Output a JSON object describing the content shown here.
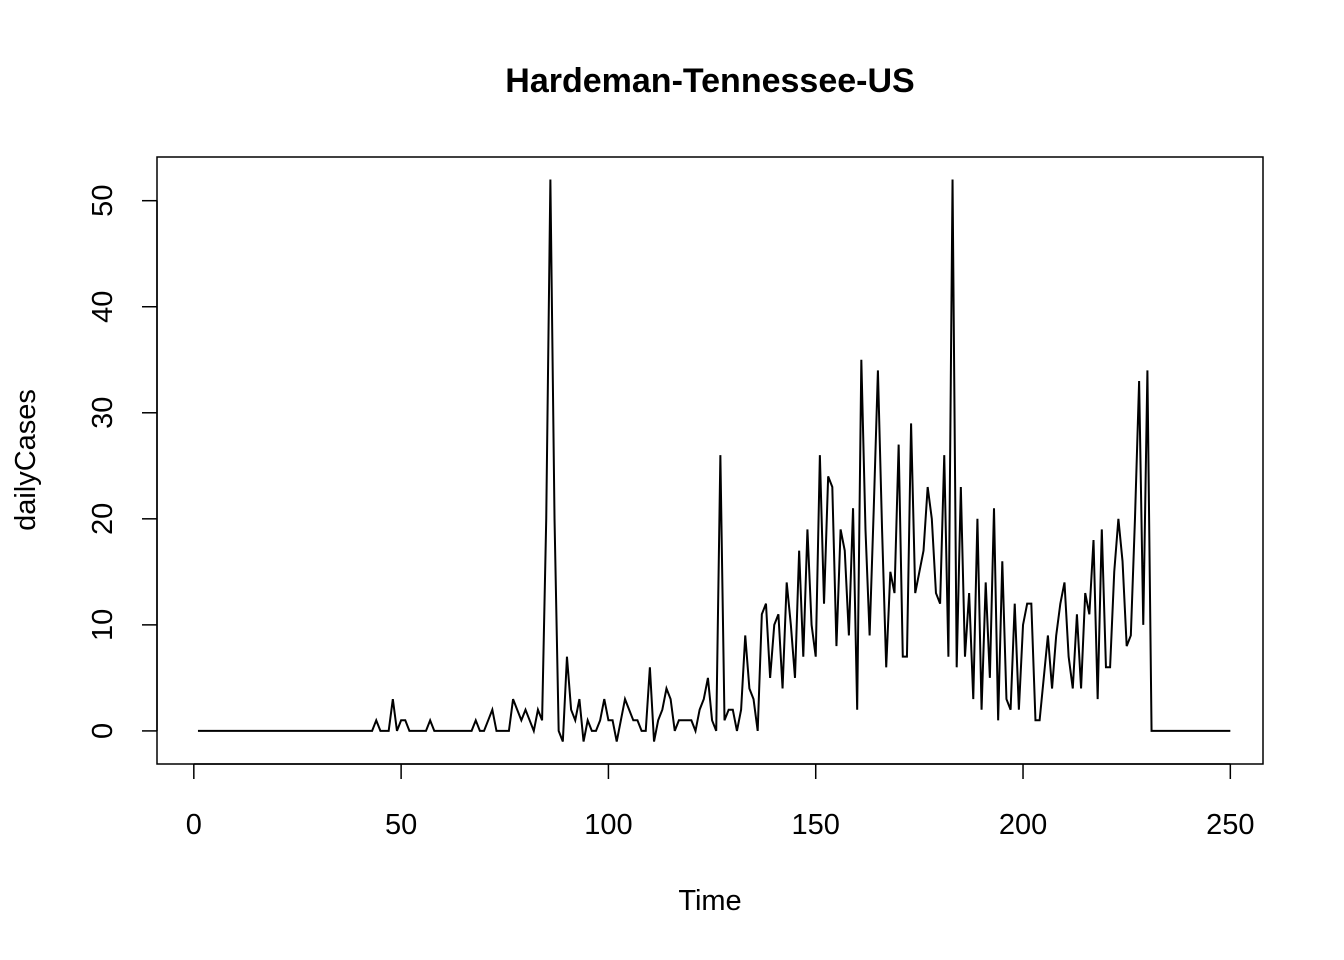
{
  "chart_data": {
    "type": "line",
    "title": "Hardeman-Tennessee-US",
    "xlabel": "Time",
    "ylabel": "dailyCases",
    "xlim": [
      1,
      248
    ],
    "ylim": [
      -1,
      52
    ],
    "xticks": [
      0,
      50,
      100,
      150,
      200,
      250
    ],
    "yticks": [
      0,
      10,
      20,
      30,
      40,
      50
    ],
    "x_start": 1,
    "values": [
      0,
      0,
      0,
      0,
      0,
      0,
      0,
      0,
      0,
      0,
      0,
      0,
      0,
      0,
      0,
      0,
      0,
      0,
      0,
      0,
      0,
      0,
      0,
      0,
      0,
      0,
      0,
      0,
      0,
      0,
      0,
      0,
      0,
      0,
      0,
      0,
      0,
      0,
      0,
      0,
      0,
      0,
      0,
      1,
      0,
      0,
      0,
      3,
      0,
      1,
      1,
      0,
      0,
      0,
      0,
      0,
      1,
      0,
      0,
      0,
      0,
      0,
      0,
      0,
      0,
      0,
      0,
      1,
      0,
      0,
      1,
      2,
      0,
      0,
      0,
      0,
      3,
      2,
      1,
      2,
      1,
      0,
      2,
      1,
      20,
      52,
      20,
      0,
      -1,
      7,
      2,
      1,
      3,
      -1,
      1,
      0,
      0,
      1,
      3,
      1,
      1,
      -1,
      1,
      3,
      2,
      1,
      1,
      0,
      0,
      6,
      -1,
      1,
      2,
      4,
      3,
      0,
      1,
      1,
      1,
      1,
      0,
      2,
      3,
      5,
      1,
      0,
      26,
      1,
      2,
      2,
      0,
      2,
      9,
      4,
      3,
      0,
      11,
      12,
      5,
      10,
      11,
      4,
      14,
      10,
      5,
      17,
      7,
      19,
      10,
      7,
      26,
      12,
      24,
      23,
      8,
      19,
      17,
      9,
      21,
      2,
      35,
      19,
      9,
      21,
      34,
      19,
      6,
      15,
      13,
      27,
      7,
      7,
      29,
      13,
      15,
      17,
      23,
      20,
      13,
      12,
      26,
      7,
      52,
      6,
      23,
      7,
      13,
      3,
      20,
      2,
      14,
      5,
      21,
      1,
      16,
      3,
      2,
      12,
      2,
      10,
      12,
      12,
      1,
      1,
      5,
      9,
      4,
      9,
      12,
      14,
      7,
      4,
      11,
      4,
      13,
      11,
      18,
      3,
      19,
      6,
      6,
      15,
      20,
      16,
      8,
      9,
      20,
      33,
      10,
      34,
      0,
      0,
      0,
      0,
      0,
      0,
      0,
      0,
      0,
      0,
      0,
      0,
      0,
      0,
      0,
      0,
      0,
      0,
      0,
      0
    ],
    "grid": false,
    "legend": "none",
    "line_color": "#000000"
  }
}
